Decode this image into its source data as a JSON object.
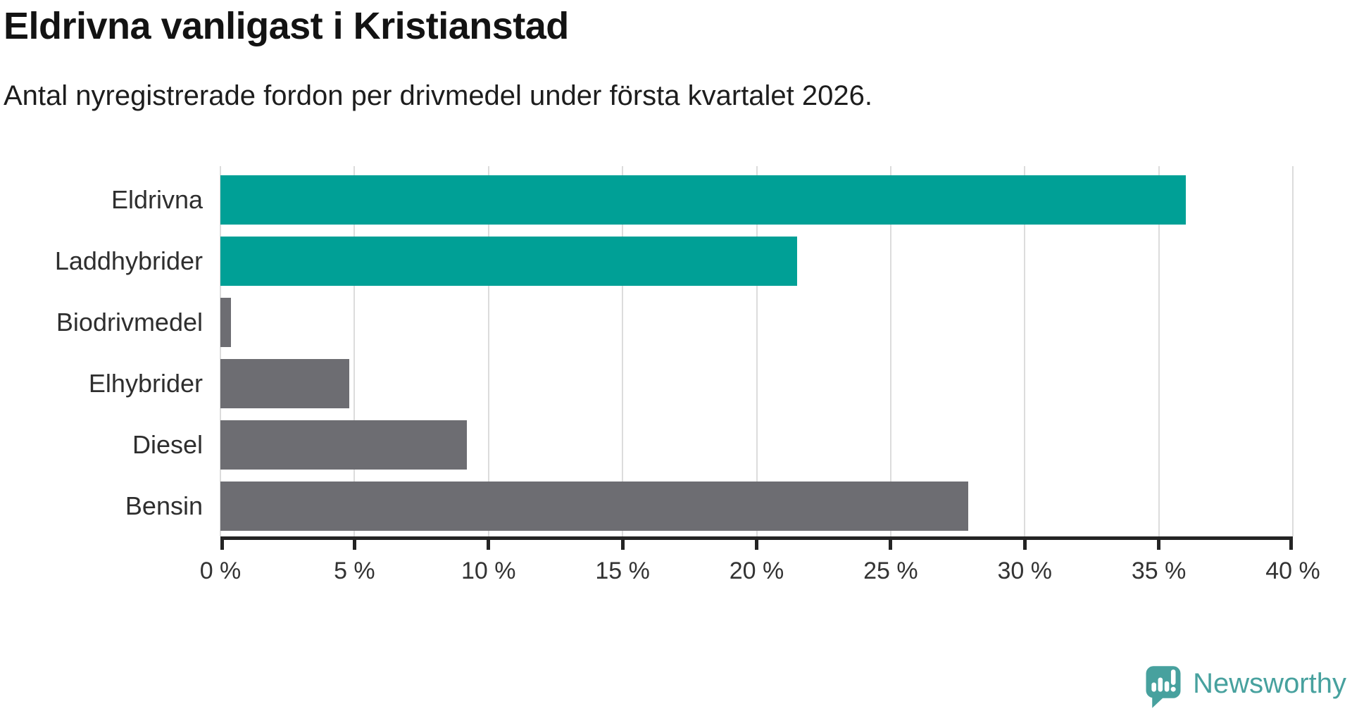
{
  "title": "Eldrivna vanligast i Kristianstad",
  "subtitle": "Antal nyregistrerade fordon per drivmedel under första kvartalet 2026.",
  "brand": {
    "name": "Newsworthy",
    "color": "#47a19e"
  },
  "chart_data": {
    "type": "bar",
    "orientation": "horizontal",
    "title": "Eldrivna vanligast i Kristianstad",
    "subtitle": "Antal nyregistrerade fordon per drivmedel under första kvartalet 2026.",
    "categories": [
      "Eldrivna",
      "Laddhybrider",
      "Biodrivmedel",
      "Elhybrider",
      "Diesel",
      "Bensin"
    ],
    "values": [
      36.0,
      21.5,
      0.4,
      4.8,
      9.2,
      27.9
    ],
    "unit": "%",
    "bar_colors": [
      "#00a096",
      "#00a096",
      "#6d6d72",
      "#6d6d72",
      "#6d6d72",
      "#6d6d72"
    ],
    "highlight_color": "#00a096",
    "default_color": "#6d6d72",
    "xlim": [
      0,
      40
    ],
    "x_ticks": [
      0,
      5,
      10,
      15,
      20,
      25,
      30,
      35,
      40
    ],
    "x_tick_labels": [
      "0 %",
      "5 %",
      "10 %",
      "15 %",
      "20 %",
      "25 %",
      "30 %",
      "35 %",
      "40 %"
    ],
    "grid": true,
    "gridline_color": "#dcdcdc",
    "axis_color": "#242424",
    "label_color": "#2e2e2e",
    "legend": false
  }
}
